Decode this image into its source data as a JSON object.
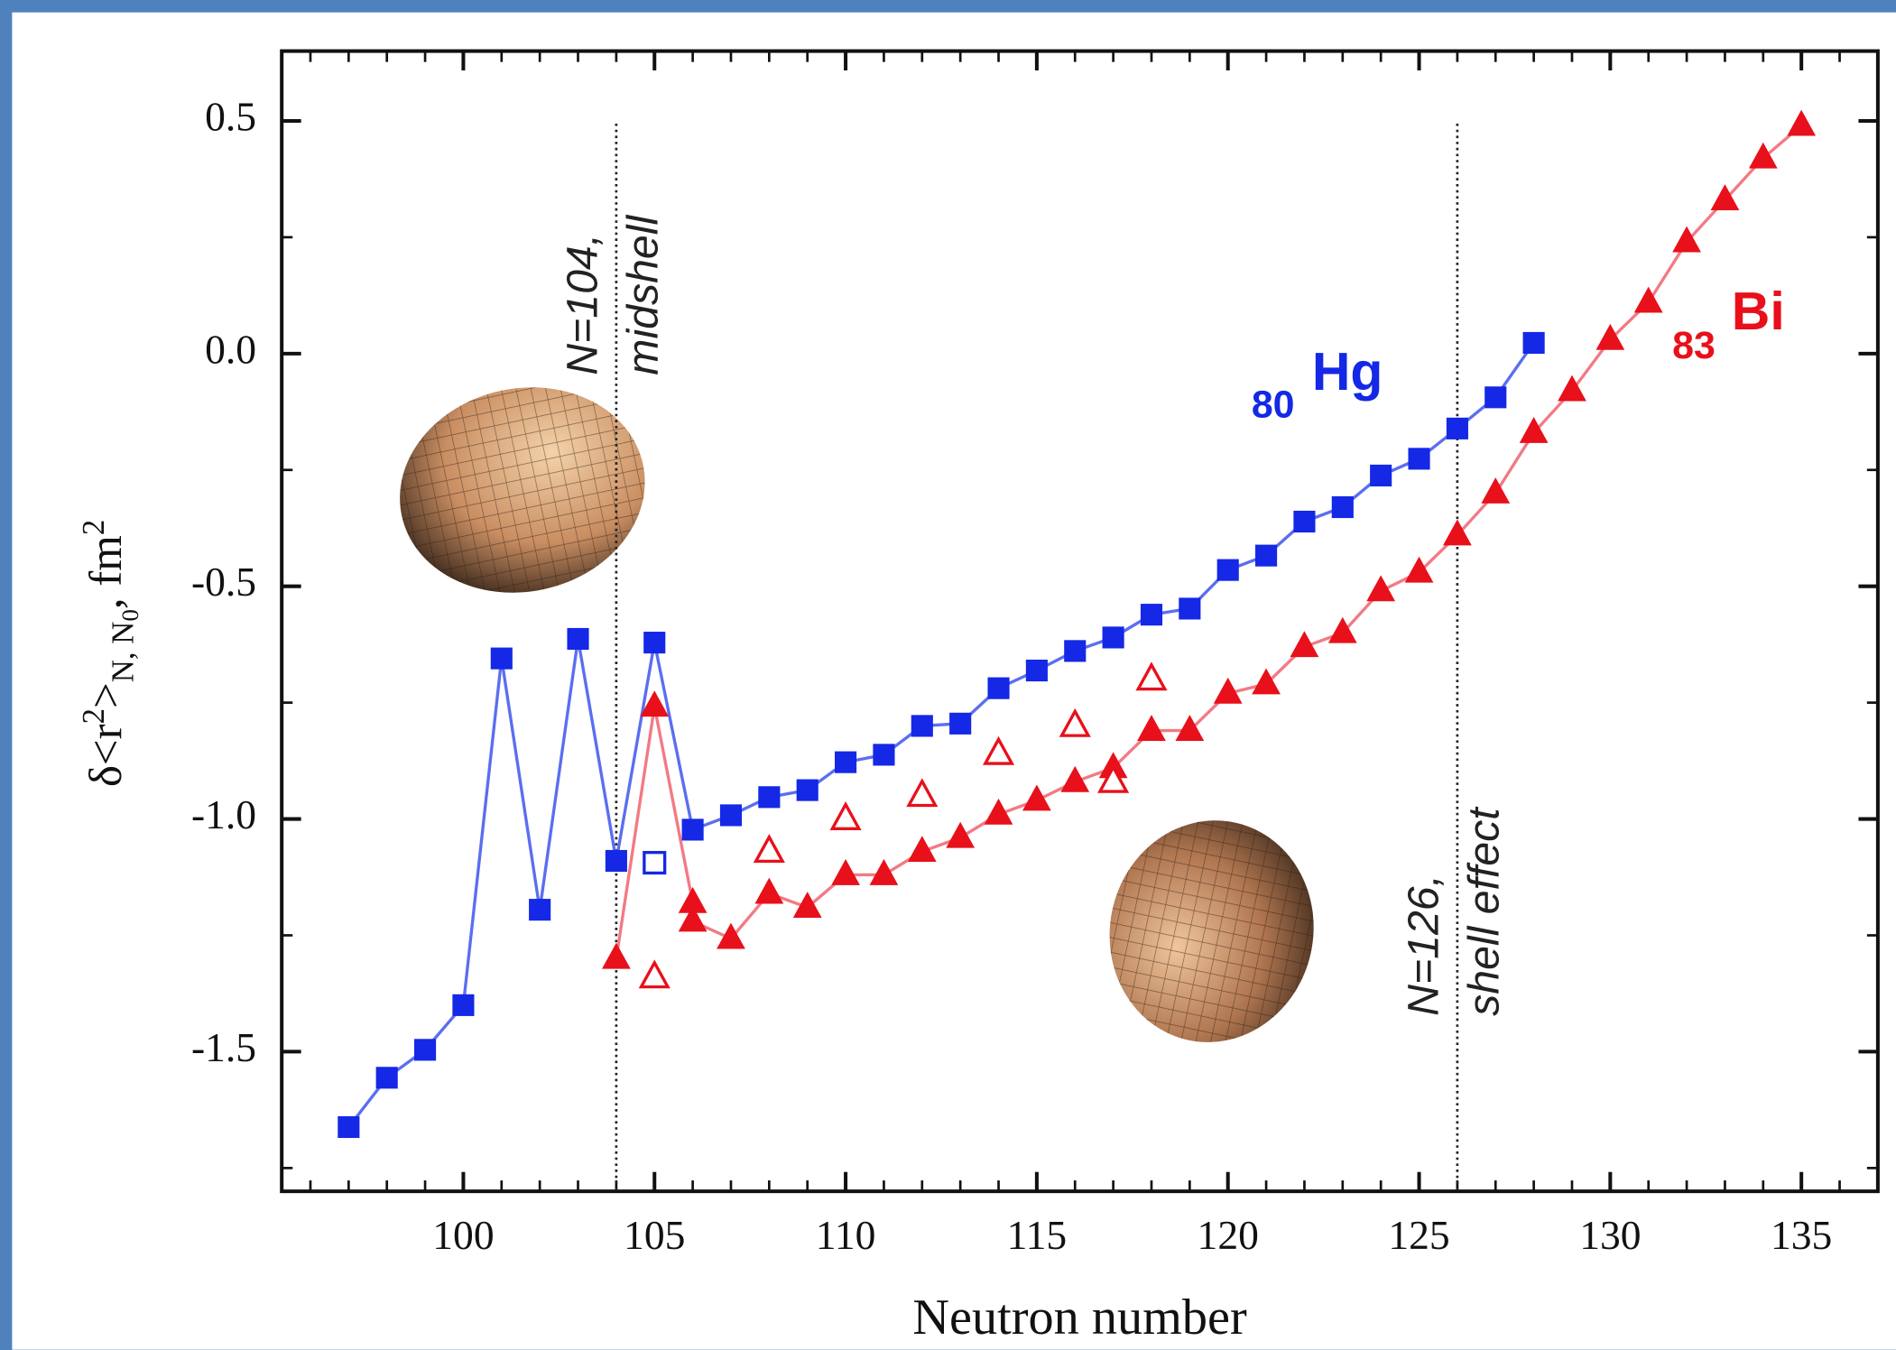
{
  "chart_data": {
    "type": "scatter",
    "xlabel": "Neutron number",
    "ylabel": [
      "δ<r",
      "2",
      ">",
      "N, N",
      "0",
      ", fm",
      "2"
    ],
    "xlim": [
      95.25,
      137
    ],
    "ylim": [
      -1.8,
      0.65
    ],
    "xticks": [
      100,
      105,
      110,
      115,
      120,
      125,
      130,
      135
    ],
    "yticks": [
      0.5,
      {
        "value": 0,
        "label": "0.0"
      },
      -0.5,
      {
        "value": -1,
        "label": "-1.0"
      },
      -1.5
    ],
    "vlines": [
      104,
      126
    ],
    "annotations": [
      {
        "x": 104,
        "lines": [
          "N=104,",
          "midshell"
        ]
      },
      {
        "x": 126,
        "lines": [
          "N=126,",
          "shell effect"
        ]
      }
    ],
    "series": [
      {
        "label": [
          "80",
          "Hg"
        ],
        "color": "#1428e6",
        "line_color": "#5b6ef0",
        "marker": "square",
        "filled": true,
        "line": true,
        "x": [
          97,
          98,
          99,
          100,
          101,
          102,
          103,
          104,
          105,
          106,
          107,
          108,
          109,
          110,
          111,
          112,
          113,
          114,
          115,
          116,
          117,
          118,
          119,
          120,
          121,
          122,
          123,
          124,
          125,
          126,
          127,
          128
        ],
        "values": [
          -1.662,
          -1.556,
          -1.496,
          -1.4,
          -0.655,
          -1.195,
          -0.613,
          -1.09,
          -0.621,
          -1.023,
          -0.992,
          -0.953,
          -0.938,
          -0.878,
          -0.862,
          -0.8,
          -0.795,
          -0.719,
          -0.681,
          -0.639,
          -0.61,
          -0.561,
          -0.548,
          -0.465,
          -0.434,
          -0.361,
          -0.33,
          -0.262,
          -0.226,
          -0.161,
          -0.094,
          0.023
        ]
      },
      {
        "color": "#1428e6",
        "marker": "square",
        "filled": false,
        "line": false,
        "x": [
          105
        ],
        "values": [
          -1.094
        ]
      },
      {
        "label": [
          "83",
          "Bi"
        ],
        "color": "#e8101a",
        "line_color": "#f27a84",
        "marker": "triangle",
        "filled": true,
        "line": true,
        "x": [
          104,
          105,
          106,
          106,
          107,
          108,
          109,
          110,
          111,
          112,
          113,
          114,
          115,
          116,
          117,
          118,
          119,
          120,
          121,
          122,
          123,
          124,
          125,
          126,
          127,
          128,
          129,
          130,
          131,
          132,
          133,
          134,
          135
        ],
        "values": [
          -1.3,
          -0.758,
          -1.18,
          -1.22,
          -1.257,
          -1.16,
          -1.19,
          -1.12,
          -1.12,
          -1.07,
          -1.04,
          -0.99,
          -0.96,
          -0.92,
          -0.89,
          -0.81,
          -0.81,
          -0.73,
          -0.71,
          -0.63,
          -0.6,
          -0.51,
          -0.47,
          -0.39,
          -0.3,
          -0.17,
          -0.08,
          0.03,
          0.11,
          0.24,
          0.33,
          0.42,
          0.49
        ]
      },
      {
        "color": "#e8101a",
        "marker": "triangle",
        "filled": false,
        "line": false,
        "x": [
          105,
          108,
          110,
          112,
          114,
          116,
          117,
          118
        ],
        "values": [
          -1.34,
          -1.07,
          -1.0,
          -0.95,
          -0.86,
          -0.8,
          -0.92,
          -0.7
        ]
      }
    ]
  }
}
